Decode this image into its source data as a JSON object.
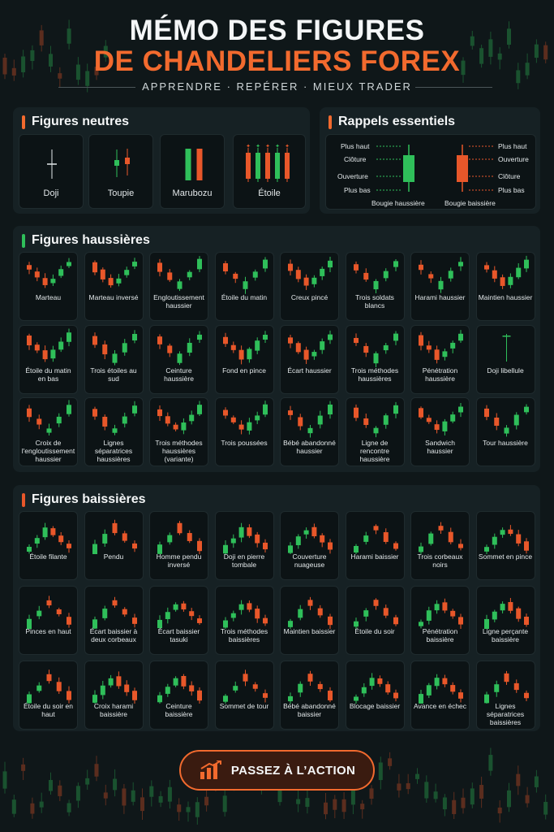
{
  "header": {
    "title_line1": "MÉMO DES FIGURES",
    "title_line2": "DE CHANDELIERS FOREX",
    "subtitle": "APPRENDRE · REPÉRER · MIEUX TRADER"
  },
  "colors": {
    "bull": "#2fbf5a",
    "bear": "#e8572a",
    "accent": "#f26a2e",
    "panel": "#162124",
    "card": "#0c1315"
  },
  "neutral": {
    "title": "Figures neutres",
    "items": [
      {
        "label": "Doji",
        "icon": "doji-icon"
      },
      {
        "label": "Toupie",
        "icon": "spinning-top-icon"
      },
      {
        "label": "Marubozu",
        "icon": "marubozu-icon"
      },
      {
        "label": "Étoile",
        "icon": "star-icon"
      }
    ]
  },
  "reminders": {
    "title": "Rappels essentiels",
    "bull": {
      "caption": "Bougie haussière",
      "labels": [
        "Plus haut",
        "Clôture",
        "Ouverture",
        "Plus bas"
      ]
    },
    "bear": {
      "caption": "Bougie baissière",
      "labels": [
        "Plus haut",
        "Ouverture",
        "Clôture",
        "Plus bas"
      ]
    }
  },
  "bullish": {
    "title": "Figures haussières",
    "items": [
      "Marteau",
      "Marteau inversé",
      "Engloutissement haussier",
      "Étoile du matin",
      "Creux pincé",
      "Trois soldats blancs",
      "Harami haussier",
      "Maintien haussier",
      "Étoile du matin en bas",
      "Trois étoiles au sud",
      "Ceinture haussière",
      "Fond en pince",
      "Écart haussier",
      "Trois méthodes haussières",
      "Pénétration haussière",
      "Doji libellule",
      "Croix de l'engloutissement haussier",
      "Lignes séparatrices haussières",
      "Trois méthodes haussières (variante)",
      "Trois poussées",
      "Bébé abandonné haussier",
      "Ligne de rencontre haussière",
      "Sandwich haussier",
      "Tour haussière"
    ]
  },
  "bearish": {
    "title": "Figures baissières",
    "items": [
      "Étoile filante",
      "Pendu",
      "Homme pendu inversé",
      "Doji en pierre tombale",
      "Couverture nuageuse",
      "Harami baissier",
      "Trois corbeaux noirs",
      "Sommet en pince",
      "Pinces en haut",
      "Écart baissier à deux corbeaux",
      "Écart baissier tasuki",
      "Trois méthodes baissières",
      "Maintien baissier",
      "Étoile du soir",
      "Pénétration baissière",
      "Ligne perçante baissière",
      "Étoile du soir en haut",
      "Croix harami baissière",
      "Ceinture baissière",
      "Sommet de tour",
      "Bébé abandonné baissier",
      "Blocage baissier",
      "Avance en échec",
      "Lignes séparatrices baissières"
    ]
  },
  "cta": {
    "label": "PASSEZ À L’ACTION",
    "icon": "bar-chart-up-icon"
  }
}
